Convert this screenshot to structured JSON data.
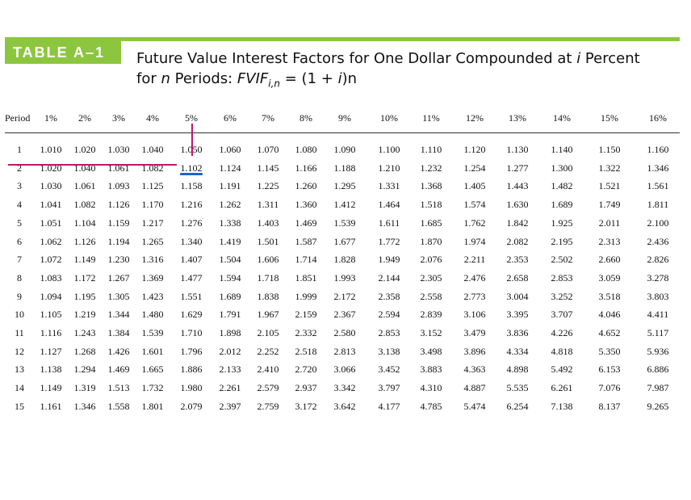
{
  "tag_label": "TABLE A–1",
  "title": {
    "line1_pre": "Future Value Interest Factors for One Dollar Compounded at ",
    "i_symbol": "i",
    "line1_post": " Percent",
    "line2_for": "for ",
    "n_symbol": "n",
    "line2_periods": " Periods: ",
    "fvif": "FVIF",
    "subscript": "i,n",
    "formula_a": " = (1 + ",
    "formula_i": "i",
    "formula_b": ")",
    "formula_n": "n"
  },
  "table": {
    "period_header": "Period",
    "rate_headers": [
      "1%",
      "2%",
      "3%",
      "4%",
      "5%",
      "6%",
      "7%",
      "8%",
      "9%",
      "10%",
      "11%",
      "12%",
      "13%",
      "14%",
      "15%",
      "16%"
    ],
    "rows": [
      {
        "period": "1",
        "values": [
          "1.010",
          "1.020",
          "1.030",
          "1.040",
          "1.050",
          "1.060",
          "1.070",
          "1.080",
          "1.090",
          "1.100",
          "1.110",
          "1.120",
          "1.130",
          "1.140",
          "1.150",
          "1.160"
        ]
      },
      {
        "period": "2",
        "values": [
          "1.020",
          "1.040",
          "1.061",
          "1.082",
          "1.102",
          "1.124",
          "1.145",
          "1.166",
          "1.188",
          "1.210",
          "1.232",
          "1.254",
          "1.277",
          "1.300",
          "1.322",
          "1.346"
        ]
      },
      {
        "period": "3",
        "values": [
          "1.030",
          "1.061",
          "1.093",
          "1.125",
          "1.158",
          "1.191",
          "1.225",
          "1.260",
          "1.295",
          "1.331",
          "1.368",
          "1.405",
          "1.443",
          "1.482",
          "1.521",
          "1.561"
        ]
      },
      {
        "period": "4",
        "values": [
          "1.041",
          "1.082",
          "1.126",
          "1.170",
          "1.216",
          "1.262",
          "1.311",
          "1.360",
          "1.412",
          "1.464",
          "1.518",
          "1.574",
          "1.630",
          "1.689",
          "1.749",
          "1.811"
        ]
      },
      {
        "period": "5",
        "values": [
          "1.051",
          "1.104",
          "1.159",
          "1.217",
          "1.276",
          "1.338",
          "1.403",
          "1.469",
          "1.539",
          "1.611",
          "1.685",
          "1.762",
          "1.842",
          "1.925",
          "2.011",
          "2.100"
        ]
      },
      {
        "period": "6",
        "values": [
          "1.062",
          "1.126",
          "1.194",
          "1.265",
          "1.340",
          "1.419",
          "1.501",
          "1.587",
          "1.677",
          "1.772",
          "1.870",
          "1.974",
          "2.082",
          "2.195",
          "2.313",
          "2.436"
        ]
      },
      {
        "period": "7",
        "values": [
          "1.072",
          "1.149",
          "1.230",
          "1.316",
          "1.407",
          "1.504",
          "1.606",
          "1.714",
          "1.828",
          "1.949",
          "2.076",
          "2.211",
          "2.353",
          "2.502",
          "2.660",
          "2.826"
        ]
      },
      {
        "period": "8",
        "values": [
          "1.083",
          "1.172",
          "1.267",
          "1.369",
          "1.477",
          "1.594",
          "1.718",
          "1.851",
          "1.993",
          "2.144",
          "2.305",
          "2.476",
          "2.658",
          "2.853",
          "3.059",
          "3.278"
        ]
      },
      {
        "period": "9",
        "values": [
          "1.094",
          "1.195",
          "1.305",
          "1.423",
          "1.551",
          "1.689",
          "1.838",
          "1.999",
          "2.172",
          "2.358",
          "2.558",
          "2.773",
          "3.004",
          "3.252",
          "3.518",
          "3.803"
        ]
      },
      {
        "period": "10",
        "values": [
          "1.105",
          "1.219",
          "1.344",
          "1.480",
          "1.629",
          "1.791",
          "1.967",
          "2.159",
          "2.367",
          "2.594",
          "2.839",
          "3.106",
          "3.395",
          "3.707",
          "4.046",
          "4.411"
        ]
      },
      {
        "period": "11",
        "values": [
          "1.116",
          "1.243",
          "1.384",
          "1.539",
          "1.710",
          "1.898",
          "2.105",
          "2.332",
          "2.580",
          "2.853",
          "3.152",
          "3.479",
          "3.836",
          "4.226",
          "4.652",
          "5.117"
        ]
      },
      {
        "period": "12",
        "values": [
          "1.127",
          "1.268",
          "1.426",
          "1.601",
          "1.796",
          "2.012",
          "2.252",
          "2.518",
          "2.813",
          "3.138",
          "3.498",
          "3.896",
          "4.334",
          "4.818",
          "5.350",
          "5.936"
        ]
      },
      {
        "period": "13",
        "values": [
          "1.138",
          "1.294",
          "1.469",
          "1.665",
          "1.886",
          "2.133",
          "2.410",
          "2.720",
          "3.066",
          "3.452",
          "3.883",
          "4.363",
          "4.898",
          "5.492",
          "6.153",
          "6.886"
        ]
      },
      {
        "period": "14",
        "values": [
          "1.149",
          "1.319",
          "1.513",
          "1.732",
          "1.980",
          "2.261",
          "2.579",
          "2.937",
          "3.342",
          "3.797",
          "4.310",
          "4.887",
          "5.535",
          "6.261",
          "7.076",
          "7.987"
        ]
      },
      {
        "period": "15",
        "values": [
          "1.161",
          "1.346",
          "1.558",
          "1.801",
          "2.079",
          "2.397",
          "2.759",
          "3.172",
          "3.642",
          "4.177",
          "4.785",
          "5.474",
          "6.254",
          "7.138",
          "8.137",
          "9.265"
        ]
      }
    ]
  },
  "colors": {
    "accent_green": "#8cc63e",
    "marker_magenta": "#c2186b",
    "marker_blue": "#1e63c9"
  }
}
